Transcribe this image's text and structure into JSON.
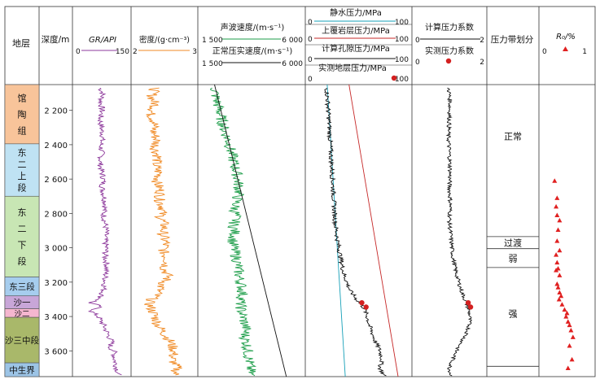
{
  "chart_data": {
    "type": "well-log",
    "depth_range": [
      2050,
      3750
    ],
    "depth_ticks": [
      2200,
      2400,
      2600,
      2800,
      3000,
      3200,
      3400,
      3600
    ],
    "columns": {
      "strata": "地层",
      "depth": "深度/m",
      "gr": "GR/API",
      "density": "密度/(g·cm⁻³)",
      "sonic": "声波速度/(m·s⁻¹)",
      "normal_trend": "正常压实速度/(m·s⁻¹)",
      "hydrostatic": "静水压力/MPa",
      "overburden": "上覆岩层压力/MPa",
      "pore_calc": "计算孔隙压力/MPa",
      "pore_measured": "实测地层压力/MPa",
      "coef_calc": "计算压力系数",
      "coef_measured": "实测压力系数",
      "zone": "压力带划分",
      "ro": "R₀/%"
    },
    "scales": {
      "gr": [
        0,
        150
      ],
      "density": [
        2,
        3
      ],
      "sonic": [
        1500,
        6000
      ],
      "normal_trend": [
        1500,
        6000
      ],
      "pressure": [
        0,
        100
      ],
      "coef": [
        0,
        2
      ],
      "ro": [
        0,
        1
      ]
    },
    "scale_labels": {
      "gr": [
        "0",
        "150"
      ],
      "density": [
        "2",
        "3"
      ],
      "sonic": [
        "1 500",
        "6 000"
      ],
      "normal_trend": [
        "1 500",
        "6 000"
      ],
      "hydrostatic": [
        "0",
        "100"
      ],
      "overburden": [
        "0",
        "100"
      ],
      "pore_calc": [
        "0",
        "100"
      ],
      "pore_measured": [
        "0",
        "100"
      ],
      "coef": [
        "0",
        "2"
      ],
      "ro": [
        "0",
        "1"
      ]
    },
    "strata": [
      {
        "name": "馆陶组",
        "top": 2050,
        "bottom": 2395,
        "color": "#f8c49a"
      },
      {
        "name": "东二上段",
        "top": 2395,
        "bottom": 2700,
        "color": "#bfe2f3"
      },
      {
        "name": "东二下段",
        "top": 2700,
        "bottom": 3170,
        "color": "#c8e6b4"
      },
      {
        "name": "东三段",
        "top": 3170,
        "bottom": 3280,
        "color": "#a6cdee"
      },
      {
        "name": "沙一",
        "top": 3280,
        "bottom": 3355,
        "color": "#c8a6d8"
      },
      {
        "name": "沙二",
        "top": 3355,
        "bottom": 3405,
        "color": "#f5b6cf"
      },
      {
        "name": "沙三中段",
        "top": 3405,
        "bottom": 3670,
        "color": "#a9b86a"
      },
      {
        "name": "中生界",
        "top": 3670,
        "bottom": 3750,
        "color": "#9cc4e6"
      }
    ],
    "pressure_zones": [
      {
        "name": "正常",
        "top": 2050,
        "bottom": 2935
      },
      {
        "name": "过渡",
        "top": 2935,
        "bottom": 3005
      },
      {
        "name": "弱",
        "top": 3005,
        "bottom": 3115
      },
      {
        "name": "强",
        "top": 3115,
        "bottom": 3690
      }
    ],
    "series": {
      "gr": [
        [
          2070,
          70
        ],
        [
          2100,
          78
        ],
        [
          2150,
          72
        ],
        [
          2200,
          76
        ],
        [
          2250,
          70
        ],
        [
          2300,
          74
        ],
        [
          2350,
          78
        ],
        [
          2400,
          72
        ],
        [
          2450,
          75
        ],
        [
          2500,
          70
        ],
        [
          2550,
          74
        ],
        [
          2600,
          80
        ],
        [
          2650,
          76
        ],
        [
          2700,
          82
        ],
        [
          2750,
          86
        ],
        [
          2800,
          80
        ],
        [
          2850,
          84
        ],
        [
          2900,
          88
        ],
        [
          2950,
          84
        ],
        [
          3000,
          88
        ],
        [
          3050,
          84
        ],
        [
          3100,
          90
        ],
        [
          3150,
          86
        ],
        [
          3200,
          84
        ],
        [
          3250,
          80
        ],
        [
          3300,
          68
        ],
        [
          3320,
          42
        ],
        [
          3340,
          70
        ],
        [
          3370,
          45
        ],
        [
          3400,
          65
        ],
        [
          3450,
          80
        ],
        [
          3500,
          92
        ],
        [
          3550,
          104
        ],
        [
          3580,
          98
        ],
        [
          3600,
          110
        ],
        [
          3650,
          112
        ],
        [
          3700,
          118
        ],
        [
          3740,
          124
        ]
      ],
      "density": [
        [
          2070,
          2.35
        ],
        [
          2120,
          2.3
        ],
        [
          2170,
          2.36
        ],
        [
          2220,
          2.28
        ],
        [
          2270,
          2.35
        ],
        [
          2320,
          2.32
        ],
        [
          2370,
          2.38
        ],
        [
          2420,
          2.35
        ],
        [
          2470,
          2.4
        ],
        [
          2520,
          2.36
        ],
        [
          2570,
          2.42
        ],
        [
          2620,
          2.38
        ],
        [
          2670,
          2.44
        ],
        [
          2720,
          2.42
        ],
        [
          2770,
          2.48
        ],
        [
          2820,
          2.44
        ],
        [
          2870,
          2.5
        ],
        [
          2920,
          2.47
        ],
        [
          2970,
          2.52
        ],
        [
          3020,
          2.48
        ],
        [
          3070,
          2.55
        ],
        [
          3120,
          2.5
        ],
        [
          3170,
          2.56
        ],
        [
          3220,
          2.45
        ],
        [
          3270,
          2.38
        ],
        [
          3320,
          2.25
        ],
        [
          3360,
          2.3
        ],
        [
          3400,
          2.35
        ],
        [
          3450,
          2.4
        ],
        [
          3500,
          2.5
        ],
        [
          3550,
          2.6
        ],
        [
          3600,
          2.65
        ],
        [
          3650,
          2.62
        ],
        [
          3700,
          2.7
        ],
        [
          3740,
          2.66
        ]
      ],
      "sonic": [
        [
          2070,
          2100
        ],
        [
          2120,
          2150
        ],
        [
          2170,
          2250
        ],
        [
          2220,
          2350
        ],
        [
          2270,
          2450
        ],
        [
          2320,
          2550
        ],
        [
          2370,
          2700
        ],
        [
          2420,
          2800
        ],
        [
          2470,
          2900
        ],
        [
          2520,
          3000
        ],
        [
          2570,
          3100
        ],
        [
          2620,
          3150
        ],
        [
          2670,
          3200
        ],
        [
          2720,
          3100
        ],
        [
          2770,
          3000
        ],
        [
          2820,
          3050
        ],
        [
          2870,
          2950
        ],
        [
          2920,
          3000
        ],
        [
          2970,
          2900
        ],
        [
          3020,
          3000
        ],
        [
          3070,
          3100
        ],
        [
          3120,
          3150
        ],
        [
          3170,
          3200
        ],
        [
          3220,
          3300
        ],
        [
          3270,
          3350
        ],
        [
          3320,
          3250
        ],
        [
          3370,
          3300
        ],
        [
          3420,
          3400
        ],
        [
          3470,
          3500
        ],
        [
          3520,
          3450
        ],
        [
          3570,
          3550
        ],
        [
          3620,
          3600
        ],
        [
          3670,
          3650
        ],
        [
          3720,
          3700
        ],
        [
          3745,
          3750
        ]
      ],
      "normal_trend": [
        [
          2050,
          2100
        ],
        [
          3750,
          5300
        ]
      ],
      "hydrostatic": [
        [
          2050,
          20.5
        ],
        [
          3750,
          37.5
        ]
      ],
      "overburden": [
        [
          2050,
          41
        ],
        [
          3750,
          87
        ]
      ],
      "pore_calc": [
        [
          2070,
          20
        ],
        [
          2150,
          21
        ],
        [
          2250,
          22
        ],
        [
          2350,
          23
        ],
        [
          2450,
          24
        ],
        [
          2550,
          25
        ],
        [
          2650,
          26
        ],
        [
          2750,
          27
        ],
        [
          2850,
          28
        ],
        [
          2950,
          30
        ],
        [
          3050,
          33
        ],
        [
          3150,
          36
        ],
        [
          3250,
          42
        ],
        [
          3300,
          48
        ],
        [
          3350,
          55
        ],
        [
          3400,
          58
        ],
        [
          3450,
          60
        ],
        [
          3500,
          63
        ],
        [
          3550,
          66
        ],
        [
          3600,
          70
        ],
        [
          3650,
          72
        ],
        [
          3700,
          70
        ],
        [
          3745,
          74
        ]
      ],
      "pore_measured": [
        [
          3320,
          53
        ],
        [
          3345,
          57
        ]
      ],
      "coef_calc": [
        [
          2070,
          0.98
        ],
        [
          2150,
          1.02
        ],
        [
          2250,
          1.0
        ],
        [
          2350,
          0.97
        ],
        [
          2450,
          1.0
        ],
        [
          2550,
          1.02
        ],
        [
          2650,
          1.0
        ],
        [
          2750,
          1.03
        ],
        [
          2850,
          1.0
        ],
        [
          2950,
          1.05
        ],
        [
          3050,
          1.1
        ],
        [
          3150,
          1.2
        ],
        [
          3250,
          1.35
        ],
        [
          3300,
          1.45
        ],
        [
          3350,
          1.55
        ],
        [
          3400,
          1.6
        ],
        [
          3450,
          1.58
        ],
        [
          3500,
          1.5
        ],
        [
          3550,
          1.35
        ],
        [
          3600,
          1.2
        ],
        [
          3650,
          1.1
        ],
        [
          3700,
          1.0
        ],
        [
          3745,
          1.05
        ]
      ],
      "coef_measured": [
        [
          3320,
          1.55
        ],
        [
          3345,
          1.62
        ]
      ],
      "ro": [
        [
          2610,
          0.25
        ],
        [
          2710,
          0.3
        ],
        [
          2760,
          0.28
        ],
        [
          2810,
          0.3
        ],
        [
          2840,
          0.35
        ],
        [
          2895,
          0.32
        ],
        [
          2960,
          0.3
        ],
        [
          3015,
          0.35
        ],
        [
          3040,
          0.28
        ],
        [
          3085,
          0.3
        ],
        [
          3120,
          0.32
        ],
        [
          3130,
          0.28
        ],
        [
          3160,
          0.35
        ],
        [
          3210,
          0.3
        ],
        [
          3230,
          0.32
        ],
        [
          3260,
          0.35
        ],
        [
          3280,
          0.38
        ],
        [
          3300,
          0.34
        ],
        [
          3330,
          0.4
        ],
        [
          3360,
          0.45
        ],
        [
          3380,
          0.5
        ],
        [
          3400,
          0.48
        ],
        [
          3430,
          0.52
        ],
        [
          3450,
          0.55
        ],
        [
          3480,
          0.58
        ],
        [
          3520,
          0.62
        ],
        [
          3570,
          0.55
        ],
        [
          3650,
          0.6
        ],
        [
          3700,
          0.52
        ]
      ]
    }
  }
}
